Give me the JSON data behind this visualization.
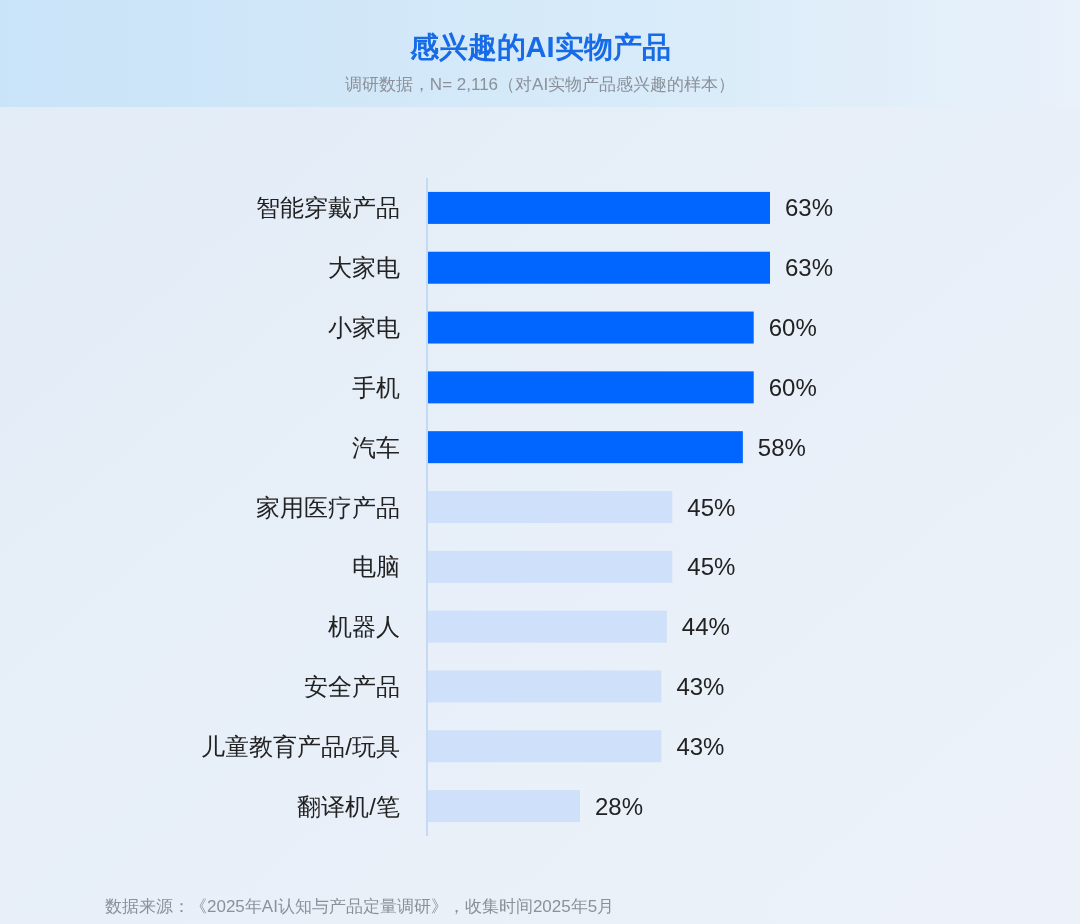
{
  "chart_data": {
    "type": "bar",
    "orientation": "horizontal",
    "title": "感兴趣的AI实物产品",
    "subtitle": "调研数据，N= 2,116（对AI实物产品感兴趣的样本）",
    "categories": [
      "智能穿戴产品",
      "大家电",
      "小家电",
      "手机",
      "汽车",
      "家用医疗产品",
      "电脑",
      "机器人",
      "安全产品",
      "儿童教育产品/玩具",
      "翻译机/笔"
    ],
    "values": [
      63,
      63,
      60,
      60,
      58,
      45,
      45,
      44,
      43,
      43,
      28
    ],
    "colors": [
      "#0066ff",
      "#0066ff",
      "#0066ff",
      "#0066ff",
      "#0066ff",
      "#cfe0fa",
      "#cfe0fa",
      "#cfe0fa",
      "#cfe0fa",
      "#cfe0fa",
      "#cfe0fa"
    ],
    "value_labels": [
      "63%",
      "63%",
      "60%",
      "60%",
      "58%",
      "45%",
      "45%",
      "44%",
      "43%",
      "43%",
      "28%"
    ],
    "annotations": [
      "数据来源：《2025年AI认知与产品定量调研》，收集时间2025年5月"
    ]
  }
}
